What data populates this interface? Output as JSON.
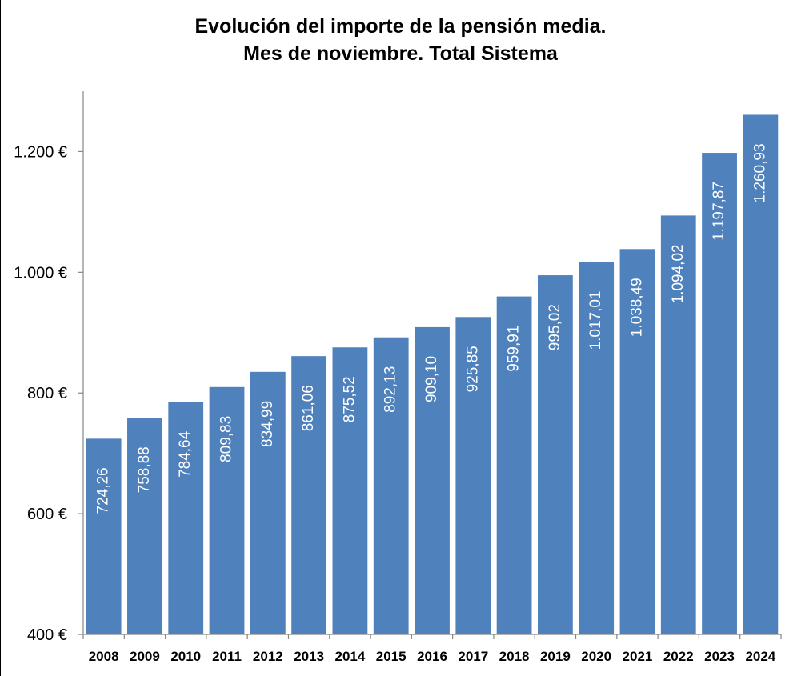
{
  "chart_data": {
    "type": "bar",
    "title": "Evolución del importe de la pensión media.",
    "subtitle": "Mes de noviembre. Total Sistema",
    "categories": [
      "2008",
      "2009",
      "2010",
      "2011",
      "2012",
      "2013",
      "2014",
      "2015",
      "2016",
      "2017",
      "2018",
      "2019",
      "2020",
      "2021",
      "2022",
      "2023",
      "2024"
    ],
    "values": [
      724.26,
      758.88,
      784.64,
      809.83,
      834.99,
      861.06,
      875.52,
      892.13,
      909.1,
      925.85,
      959.91,
      995.02,
      1017.01,
      1038.49,
      1094.02,
      1197.87,
      1260.93
    ],
    "data_labels": [
      "724,26",
      "758,88",
      "784,64",
      "809,83",
      "834,99",
      "861,06",
      "875,52",
      "892,13",
      "909,10",
      "925,85",
      "959,91",
      "995,02",
      "1.017,01",
      "1.038,49",
      "1.094,02",
      "1.197,87",
      "1.260,93"
    ],
    "ylim": [
      400,
      1300
    ],
    "yticks": [
      400,
      600,
      800,
      1000,
      1200
    ],
    "ytick_labels": [
      "400 €",
      "600 €",
      "800 €",
      "1.000 €",
      "1.200 €"
    ],
    "xlabel": "",
    "ylabel": "",
    "bar_color": "#4F81BD",
    "label_color": "#FFFFFF",
    "grid": false,
    "legend": "none"
  }
}
